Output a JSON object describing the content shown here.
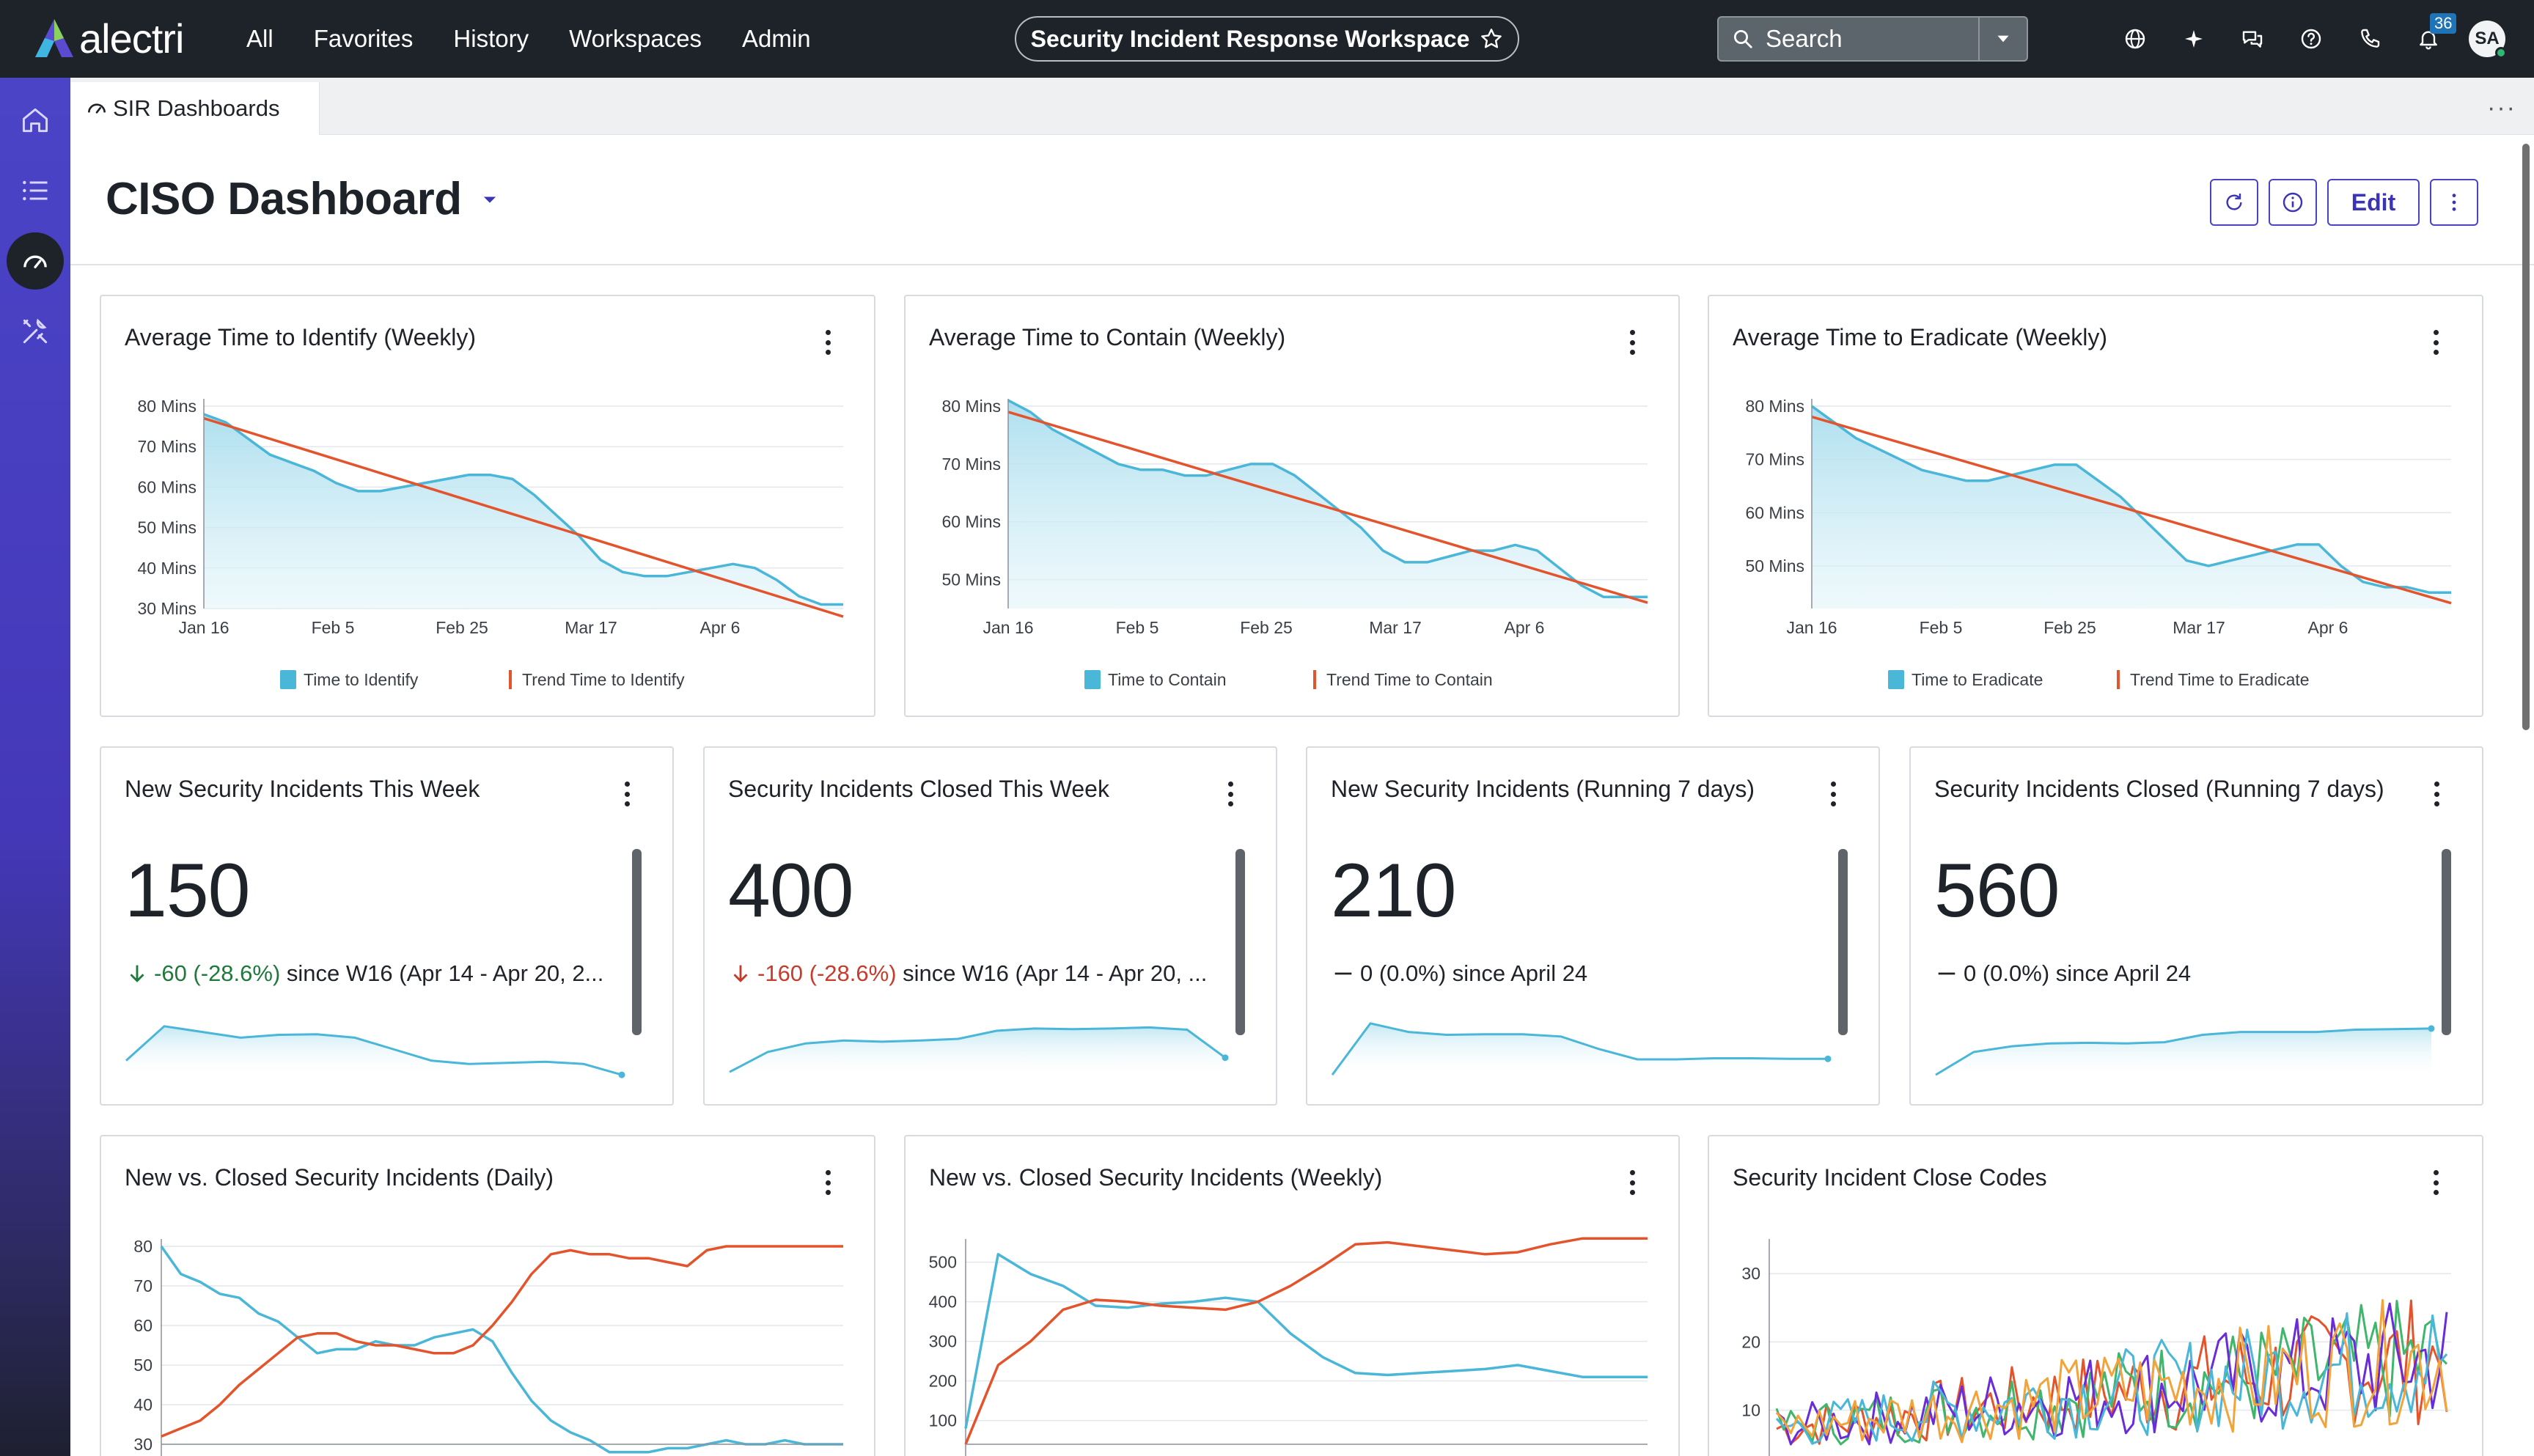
{
  "app": {
    "brand": "alectri",
    "nav": [
      "All",
      "Favorites",
      "History",
      "Workspaces",
      "Admin"
    ],
    "workspace_title": "Security Incident Response Workspace",
    "search_label": "Search",
    "notification_count": "36",
    "avatar_initials": "SA",
    "icons": [
      "globe-icon",
      "sparkle-icon",
      "chat-icon",
      "help-icon",
      "phone-icon",
      "bell-icon"
    ]
  },
  "rail": {
    "items": [
      "home-icon",
      "list-icon",
      "dashboard-icon",
      "tools-icon"
    ],
    "active": "dashboard-icon"
  },
  "tab": {
    "label": "SIR Dashboards"
  },
  "dashboard": {
    "title": "CISO Dashboard",
    "edit_label": "Edit"
  },
  "colors": {
    "series": "#4ab6d8",
    "trend": "#e4542c",
    "accent": "#4a43c8"
  },
  "trend_cards": [
    {
      "title": "Average Time to Identify (Weekly)",
      "legend": [
        "Time to Identify",
        "Trend Time to Identify"
      ],
      "chart_data": {
        "type": "area",
        "x_ticks": [
          "Jan 16",
          "Feb 5",
          "Feb 25",
          "Mar 17",
          "Apr 6"
        ],
        "y_ticks": [
          "80 Mins",
          "70 Mins",
          "60 Mins",
          "50 Mins",
          "40 Mins",
          "30 Mins"
        ],
        "ylim": [
          30,
          80
        ],
        "series": [
          78,
          76,
          72,
          68,
          66,
          64,
          61,
          59,
          59,
          60,
          61,
          62,
          63,
          63,
          62,
          58,
          53,
          48,
          42,
          39,
          38,
          38,
          39,
          40,
          41,
          40,
          37,
          33,
          31,
          31
        ],
        "trend": [
          77,
          28
        ]
      }
    },
    {
      "title": "Average Time to Contain (Weekly)",
      "legend": [
        "Time to Contain",
        "Trend Time to Contain"
      ],
      "chart_data": {
        "type": "area",
        "x_ticks": [
          "Jan 16",
          "Feb 5",
          "Feb 25",
          "Mar 17",
          "Apr 6"
        ],
        "y_ticks": [
          "80 Mins",
          "70 Mins",
          "60 Mins",
          "50 Mins"
        ],
        "ylim": [
          45,
          80
        ],
        "series": [
          81,
          79,
          76,
          74,
          72,
          70,
          69,
          69,
          68,
          68,
          69,
          70,
          70,
          68,
          65,
          62,
          59,
          55,
          53,
          53,
          54,
          55,
          55,
          56,
          55,
          52,
          49,
          47,
          47,
          47
        ],
        "trend": [
          79,
          46
        ]
      }
    },
    {
      "title": "Average Time to Eradicate (Weekly)",
      "legend": [
        "Time to Eradicate",
        "Trend Time to Eradicate"
      ],
      "chart_data": {
        "type": "area",
        "x_ticks": [
          "Jan 16",
          "Feb 5",
          "Feb 25",
          "Mar 17",
          "Apr 6"
        ],
        "y_ticks": [
          "80 Mins",
          "70 Mins",
          "60 Mins",
          "50 Mins"
        ],
        "ylim": [
          42,
          80
        ],
        "series": [
          80,
          77,
          74,
          72,
          70,
          68,
          67,
          66,
          66,
          67,
          68,
          69,
          69,
          66,
          63,
          59,
          55,
          51,
          50,
          51,
          52,
          53,
          54,
          54,
          50,
          47,
          46,
          46,
          45,
          45
        ],
        "trend": [
          78,
          43
        ]
      }
    }
  ],
  "kpi_cards": [
    {
      "title": "New Security Incidents This Week",
      "value": "150",
      "delta_arrow": "down",
      "delta_value": "-60 (-28.6%)",
      "delta_text": "since W16 (Apr 14 - Apr 20, 2...",
      "delta_tone": "good",
      "chart_data": {
        "type": "line",
        "values": [
          3,
          9,
          8,
          7,
          7.5,
          7.6,
          7,
          5,
          3,
          2.4,
          2.6,
          2.8,
          2.4,
          0.5
        ]
      }
    },
    {
      "title": "Security Incidents Closed This Week",
      "value": "400",
      "delta_arrow": "down",
      "delta_value": "-160 (-28.6%)",
      "delta_text": "since W16 (Apr 14 - Apr 20, ...",
      "delta_tone": "bad",
      "chart_data": {
        "type": "line",
        "values": [
          1,
          4.5,
          6,
          6.5,
          6.3,
          6.5,
          6.8,
          8.2,
          8.6,
          8.5,
          8.6,
          8.8,
          8.4,
          3.5
        ]
      }
    },
    {
      "title": "New Security Incidents (Running 7 days)",
      "value": "210",
      "delta_arrow": "flat",
      "delta_value": "0 (0.0%)",
      "delta_text": "since April 24",
      "delta_tone": "neutral",
      "chart_data": {
        "type": "line",
        "values": [
          0.5,
          9.5,
          8,
          7.5,
          7.6,
          7.6,
          7.2,
          5,
          3.2,
          3.2,
          3.4,
          3.4,
          3.3,
          3.3
        ]
      }
    },
    {
      "title": "Security Incidents Closed (Running 7 days)",
      "value": "560",
      "delta_arrow": "flat",
      "delta_value": "0 (0.0%)",
      "delta_text": "since April 24",
      "delta_tone": "neutral",
      "chart_data": {
        "type": "line",
        "values": [
          0.5,
          4.5,
          5.5,
          6,
          6.1,
          6,
          6.2,
          7.5,
          8,
          8,
          8,
          8.4,
          8.5,
          8.6
        ]
      }
    }
  ],
  "daily_card": {
    "title": "New vs. Closed Security Incidents (Daily)",
    "chart_data": {
      "type": "line",
      "y_ticks": [
        "80",
        "70",
        "60",
        "50",
        "40",
        "30"
      ],
      "ylim": [
        30,
        80
      ],
      "series": [
        {
          "values": [
            80,
            73,
            71,
            68,
            67,
            63,
            61,
            57,
            53,
            54,
            54,
            56,
            55,
            55,
            57,
            58,
            59,
            56,
            48,
            41,
            36,
            33,
            31,
            28,
            28,
            28,
            29,
            29,
            30,
            31,
            30,
            30,
            31,
            30,
            30,
            30
          ]
        },
        {
          "values": [
            32,
            34,
            36,
            40,
            45,
            49,
            53,
            57,
            58,
            58,
            56,
            55,
            55,
            54,
            53,
            53,
            55,
            60,
            66,
            73,
            78,
            79,
            78,
            78,
            77,
            77,
            76,
            75,
            79,
            80,
            80,
            80,
            80,
            80,
            80,
            80
          ]
        }
      ]
    }
  },
  "weekly_card": {
    "title": "New vs. Closed Security Incidents (Weekly)",
    "chart_data": {
      "type": "line",
      "y_ticks": [
        "500",
        "400",
        "300",
        "200",
        "100"
      ],
      "ylim": [
        40,
        540
      ],
      "series": [
        {
          "values": [
            80,
            520,
            470,
            440,
            390,
            385,
            395,
            400,
            410,
            400,
            320,
            260,
            220,
            215,
            220,
            225,
            230,
            240,
            225,
            210,
            210,
            210
          ]
        },
        {
          "values": [
            40,
            240,
            300,
            380,
            405,
            400,
            390,
            385,
            380,
            400,
            440,
            490,
            545,
            550,
            540,
            530,
            520,
            525,
            545,
            560,
            560,
            560
          ]
        }
      ]
    }
  },
  "close_codes_card": {
    "title": "Security Incident Close Codes",
    "chart_data": {
      "type": "line",
      "y_ticks": [
        "30",
        "20",
        "10"
      ],
      "ylim": [
        5,
        34
      ],
      "series_colors": [
        "#e4542c",
        "#3fb66b",
        "#6a2bd9",
        "#4ab6d8",
        "#f2a33a"
      ]
    }
  }
}
